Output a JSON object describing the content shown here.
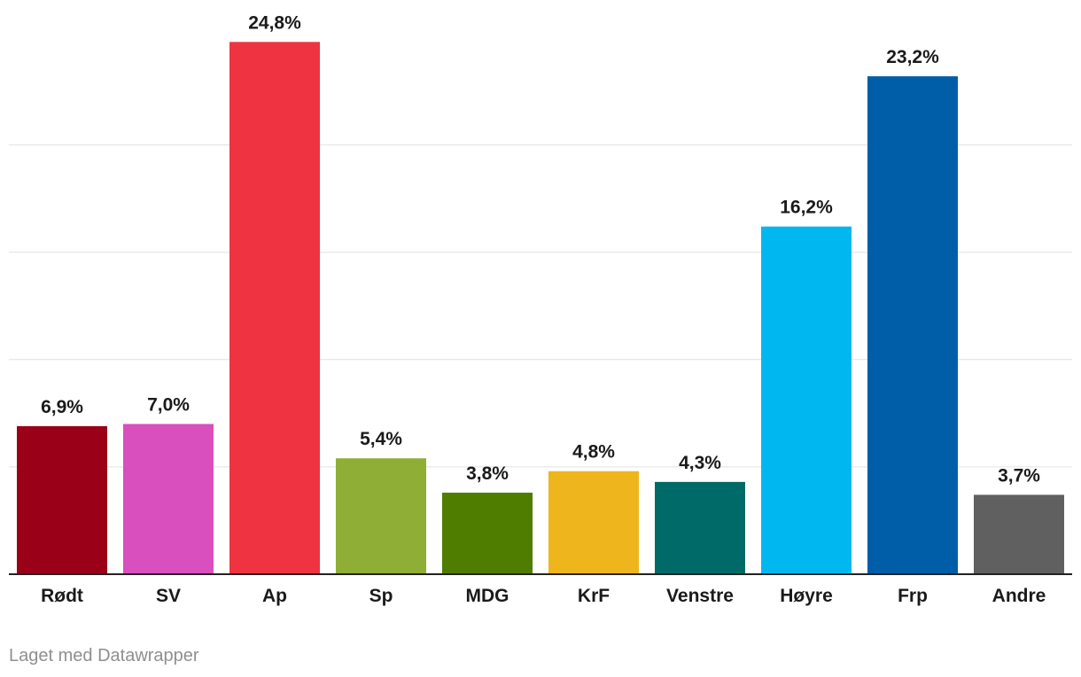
{
  "chart_data": {
    "type": "bar",
    "categories": [
      "Rødt",
      "SV",
      "Ap",
      "Sp",
      "MDG",
      "KrF",
      "Venstre",
      "Høyre",
      "Frp",
      "Andre"
    ],
    "values": [
      6.9,
      7.0,
      24.8,
      5.4,
      3.8,
      4.8,
      4.3,
      16.2,
      23.2,
      3.7
    ],
    "value_labels": [
      "6,9%",
      "7,0%",
      "24,8%",
      "5,4%",
      "3,8%",
      "4,8%",
      "4,3%",
      "16,2%",
      "23,2%",
      "3,7%"
    ],
    "colors": [
      "#9a0017",
      "#d94fbd",
      "#ef3340",
      "#8fae35",
      "#4e7d00",
      "#efb51c",
      "#006a68",
      "#00b8ef",
      "#005ea8",
      "#606060"
    ],
    "ylim": [
      0,
      25
    ],
    "gridlines": [
      5,
      10,
      15,
      20
    ],
    "grid": true,
    "title": "",
    "xlabel": "",
    "ylabel": ""
  },
  "footer": {
    "credit": "Laget med Datawrapper"
  }
}
